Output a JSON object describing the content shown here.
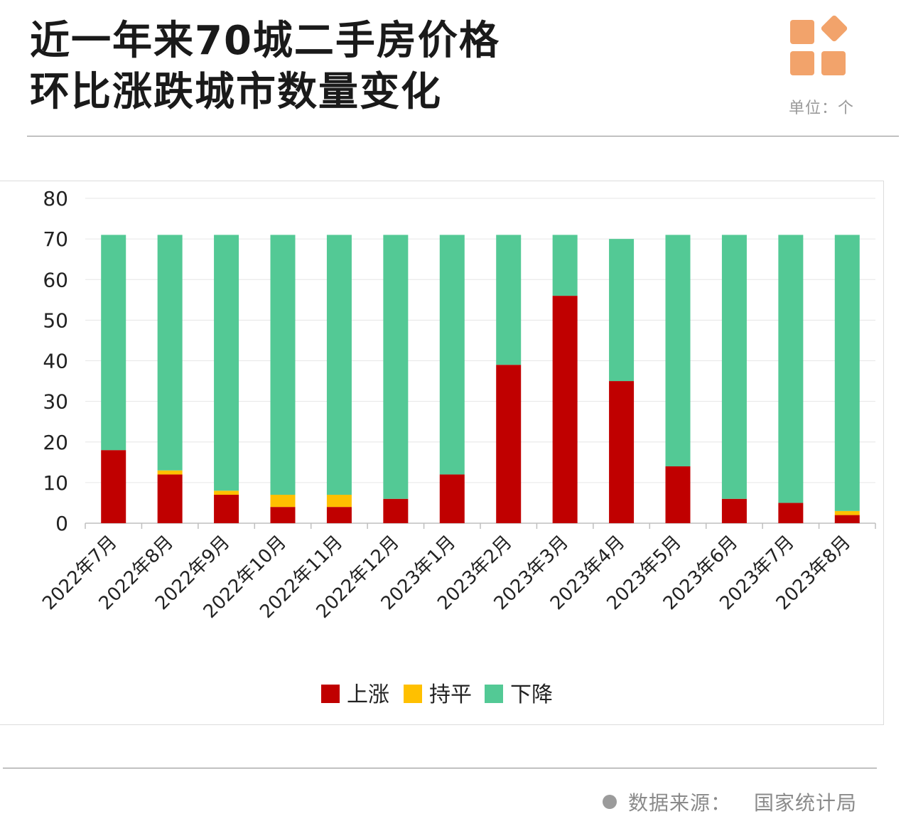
{
  "title": {
    "line1": "近一年来70城二手房价格",
    "line2": "环比涨跌城市数量变化"
  },
  "unit": "单位：个",
  "source": {
    "label": "数据来源：",
    "value": "国家统计局"
  },
  "colors": {
    "up": "#c00000",
    "flat": "#ffc000",
    "down": "#53c995",
    "logo": "#f2a36b",
    "grid": "#e6e6e6",
    "axis": "#bfbfbf",
    "text": "#222222"
  },
  "chart_data": {
    "type": "bar",
    "stacked": true,
    "title": "近一年来70城二手房价格环比涨跌城市数量变化",
    "categories": [
      "2022年7月",
      "2022年8月",
      "2022年9月",
      "2022年10月",
      "2022年11月",
      "2022年12月",
      "2023年1月",
      "2023年2月",
      "2023年3月",
      "2023年4月",
      "2023年5月",
      "2023年6月",
      "2023年7月",
      "2023年8月"
    ],
    "series": [
      {
        "name": "上涨",
        "color": "#c00000",
        "values": [
          18,
          12,
          7,
          4,
          4,
          6,
          12,
          39,
          56,
          35,
          14,
          6,
          5,
          2
        ]
      },
      {
        "name": "持平",
        "color": "#ffc000",
        "values": [
          0,
          1,
          1,
          3,
          3,
          0,
          0,
          0,
          0,
          0,
          0,
          0,
          0,
          1
        ]
      },
      {
        "name": "下降",
        "color": "#53c995",
        "values": [
          53,
          58,
          63,
          64,
          64,
          65,
          59,
          32,
          15,
          35,
          57,
          65,
          66,
          68
        ]
      }
    ],
    "ylim": [
      0,
      80
    ],
    "yticks": [
      0,
      10,
      20,
      30,
      40,
      50,
      60,
      70,
      80
    ],
    "xlabel": "",
    "ylabel": "",
    "grid": true,
    "legend_position": "bottom"
  }
}
